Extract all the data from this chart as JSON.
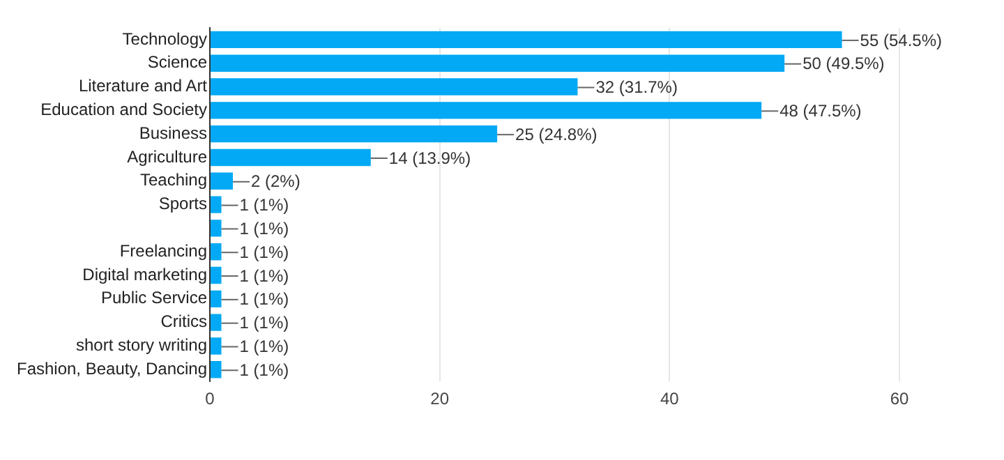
{
  "chart_data": {
    "type": "bar",
    "orientation": "horizontal",
    "categories": [
      "Technology",
      "Science",
      "Literature and Art",
      "Education and Society",
      "Business",
      "Agriculture",
      "Teaching",
      "Sports",
      null,
      "Freelancing",
      "Digital marketing",
      "Public Service",
      "Critics",
      "short story writing",
      "Fashion, Beauty, Dancing"
    ],
    "values": [
      55,
      50,
      32,
      48,
      25,
      14,
      2,
      1,
      1,
      1,
      1,
      1,
      1,
      1,
      1
    ],
    "value_labels": [
      "55 (54.5%)",
      "50 (49.5%)",
      "32 (31.7%)",
      "48 (47.5%)",
      "25 (24.8%)",
      "14 (13.9%)",
      "2 (2%)",
      "1 (1%)",
      "1 (1%)",
      "1 (1%)",
      "1 (1%)",
      "1 (1%)",
      "1 (1%)",
      "1 (1%)",
      "1 (1%)"
    ],
    "color": "#03a9f4",
    "xlim": [
      0,
      60
    ],
    "xticks": [
      0,
      20,
      40,
      60
    ],
    "grid": "x"
  }
}
